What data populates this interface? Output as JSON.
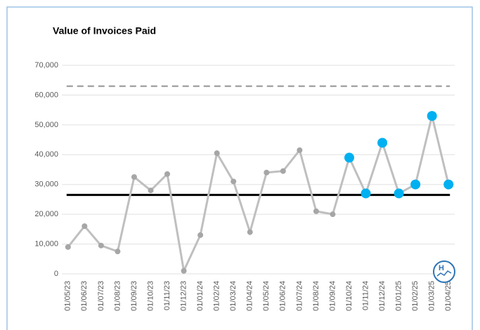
{
  "chart_data": {
    "type": "line",
    "title": "Value of Invoices Paid",
    "categories": [
      "01/05/23",
      "01/06/23",
      "01/07/23",
      "01/08/23",
      "01/09/23",
      "01/10/23",
      "01/11/23",
      "01/12/23",
      "01/01/24",
      "01/02/24",
      "01/03/24",
      "01/04/24",
      "01/05/24",
      "01/06/24",
      "01/07/24",
      "01/08/24",
      "01/09/24",
      "01/10/24",
      "01/11/24",
      "01/12/24",
      "01/01/25",
      "01/02/25",
      "01/03/25",
      "01/04/25"
    ],
    "values": [
      9000,
      16000,
      9500,
      7500,
      32500,
      28000,
      33500,
      1000,
      13000,
      40500,
      31000,
      14000,
      34000,
      34500,
      41500,
      21000,
      20000,
      39000,
      27000,
      44000,
      27000,
      30000,
      53000,
      30000
    ],
    "color": "#bfbfbf",
    "marker_colors": [
      "#a6a6a6",
      "#a6a6a6",
      "#a6a6a6",
      "#a6a6a6",
      "#a6a6a6",
      "#a6a6a6",
      "#a6a6a6",
      "#a6a6a6",
      "#a6a6a6",
      "#a6a6a6",
      "#a6a6a6",
      "#a6a6a6",
      "#a6a6a6",
      "#a6a6a6",
      "#a6a6a6",
      "#a6a6a6",
      "#a6a6a6",
      "#00b0f0",
      "#00b0f0",
      "#00b0f0",
      "#00b0f0",
      "#00b0f0",
      "#00b0f0",
      "#00b0f0"
    ],
    "reference_lines": [
      {
        "value": 26500,
        "color": "#000000",
        "style": "solid"
      },
      {
        "value": 63000,
        "color": "#a6a6a6",
        "style": "dashed"
      }
    ],
    "ylim": [
      0,
      70000
    ],
    "yticks": [
      {
        "value": 0,
        "label": "0"
      },
      {
        "value": 10000,
        "label": "10,000"
      },
      {
        "value": 20000,
        "label": "20,000"
      },
      {
        "value": 30000,
        "label": "30,000"
      },
      {
        "value": 40000,
        "label": "40,000"
      },
      {
        "value": 50000,
        "label": "50,000"
      },
      {
        "value": 60000,
        "label": "60,000"
      },
      {
        "value": 70000,
        "label": "70,000"
      }
    ],
    "grid": true,
    "logo": "H"
  }
}
